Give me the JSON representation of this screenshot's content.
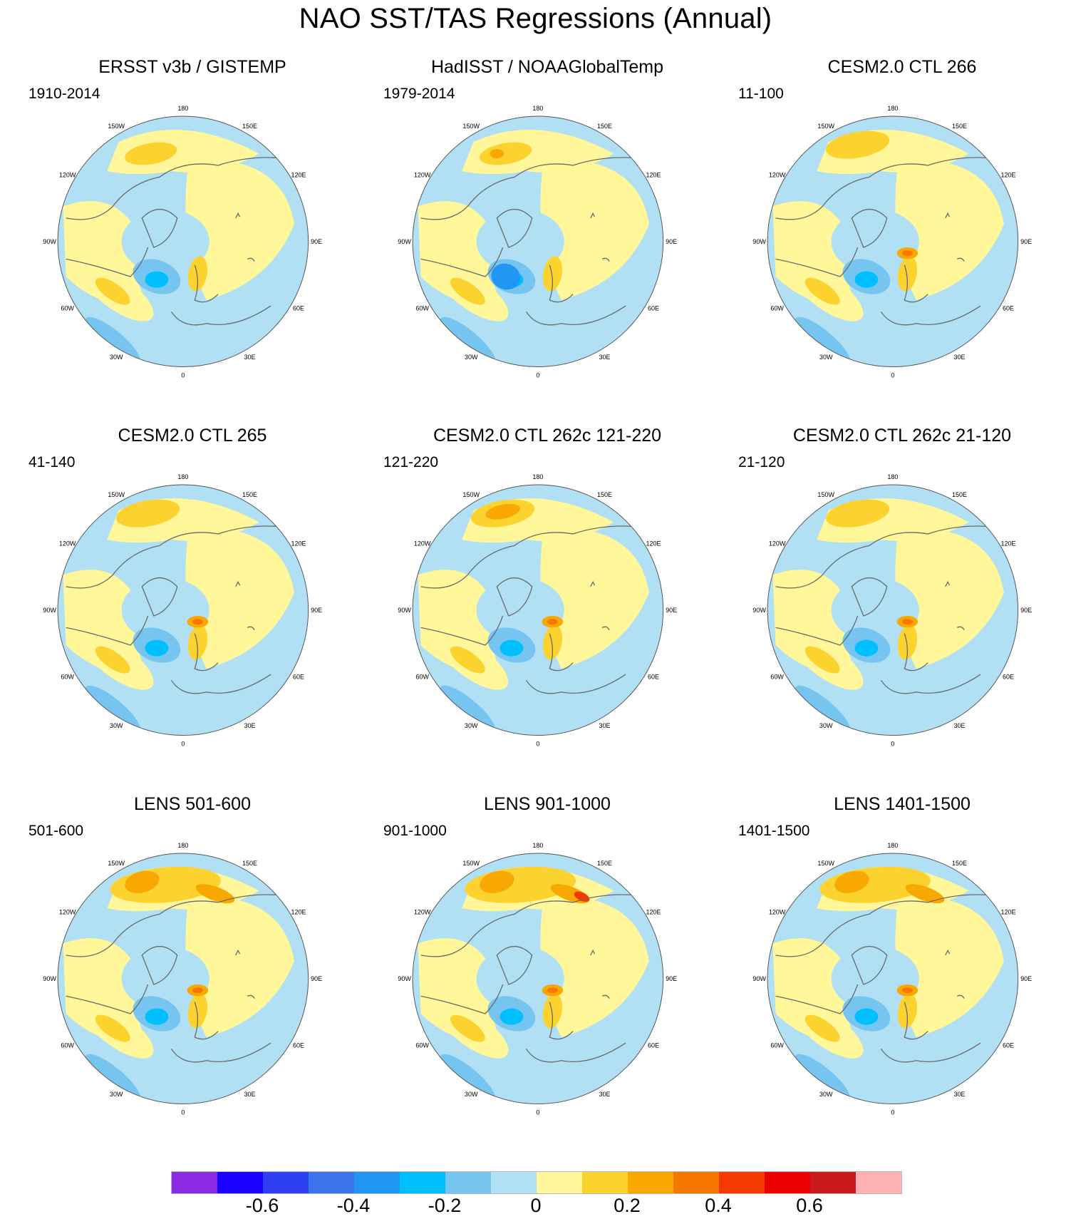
{
  "figure": {
    "title": "NAO SST/TAS Regressions (Annual)"
  },
  "longitude_labels": {
    "top": "180",
    "bottom": "0",
    "upper_left": "150W",
    "upper_right": "150E",
    "left_upper": "120W",
    "right_upper": "120E",
    "left": "90W",
    "right": "90E",
    "left_lower": "60W",
    "right_lower": "60E",
    "lower_left": "30W",
    "lower_right": "30E"
  },
  "panels": [
    {
      "title": "ERSST v3b / GISTEMP",
      "period": "1910-2014",
      "kind": "obs1"
    },
    {
      "title": "HadISST / NOAAGlobalTemp",
      "period": "1979-2014",
      "kind": "obs2"
    },
    {
      "title": "CESM2.0 CTL 266",
      "period": "11-100",
      "kind": "model"
    },
    {
      "title": "CESM2.0 CTL 265",
      "period": "41-140",
      "kind": "model"
    },
    {
      "title": "CESM2.0 CTL 262c 121-220",
      "period": "121-220",
      "kind": "model"
    },
    {
      "title": "CESM2.0 CTL 262c 21-120",
      "period": "21-120",
      "kind": "model"
    },
    {
      "title": "LENS 501-600",
      "period": "501-600",
      "kind": "lens"
    },
    {
      "title": "LENS 901-1000",
      "period": "901-1000",
      "kind": "lens"
    },
    {
      "title": "LENS 1401-1500",
      "period": "1401-1500",
      "kind": "lens"
    }
  ],
  "colorbar": {
    "colors": [
      "#8a2be2",
      "#1c00ff",
      "#2f3ff2",
      "#3b73ea",
      "#2196f3",
      "#00bfff",
      "#75c5f0",
      "#b1e0f5",
      "#fff799",
      "#fcd22f",
      "#f8a800",
      "#f77800",
      "#f43a00",
      "#eb0000",
      "#c8191b",
      "#ffb2b2"
    ],
    "tick_labels": [
      "-0.6",
      "-0.4",
      "-0.2",
      "0",
      "0.2",
      "0.4",
      "0.6"
    ],
    "tick_values": [
      -0.6,
      -0.4,
      -0.2,
      0,
      0.2,
      0.4,
      0.6
    ],
    "range": [
      -0.8,
      0.8
    ]
  }
}
